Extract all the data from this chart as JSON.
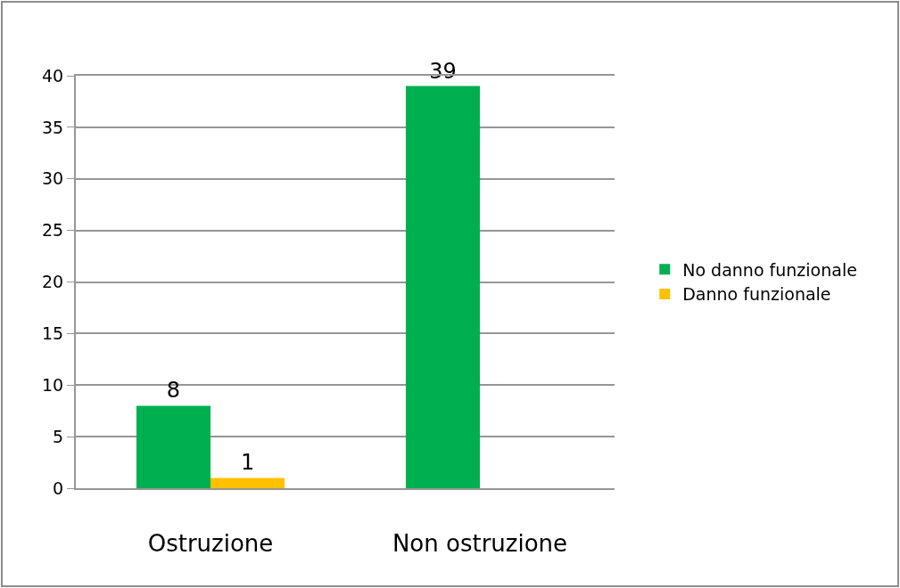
{
  "chart_data": {
    "type": "bar",
    "categories": [
      "Ostruzione",
      "Non ostruzione"
    ],
    "series": [
      {
        "name": "No danno funzionale",
        "color": "#00b050",
        "values": [
          8,
          39
        ]
      },
      {
        "name": "Danno funzionale",
        "color": "#ffc000",
        "values": [
          1,
          null
        ]
      }
    ],
    "ylim": [
      0,
      40
    ],
    "yticks": [
      0,
      5,
      10,
      15,
      20,
      25,
      30,
      35,
      40
    ],
    "grid": "y",
    "legend": "right",
    "data_labels": true
  }
}
